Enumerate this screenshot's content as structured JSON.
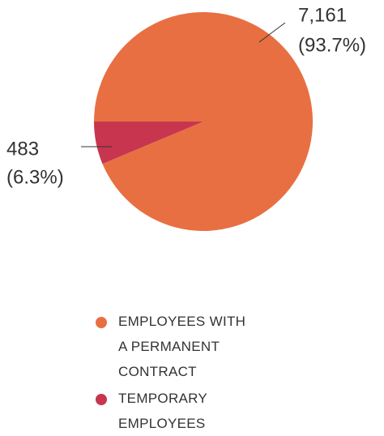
{
  "chart_data": {
    "type": "pie",
    "categories": [
      "EMPLOYEES WITH A PERMANENT CONTRACT",
      "TEMPORARY EMPLOYEES"
    ],
    "values": [
      7161,
      483
    ],
    "value_labels": [
      "7,161",
      "483"
    ],
    "percent_labels": [
      "(93.7%)",
      "(6.3%)"
    ],
    "colors": [
      "#e86f42",
      "#c8354f"
    ]
  }
}
